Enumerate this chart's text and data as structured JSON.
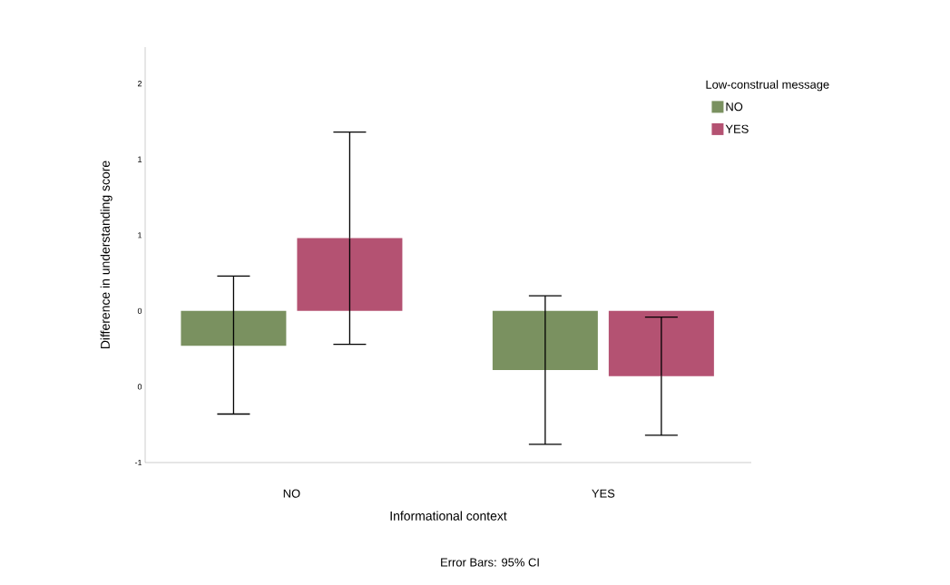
{
  "chart_data": {
    "type": "bar",
    "xlabel": "Informational context",
    "ylabel": "Difference in understanding score",
    "legend_title": "Low-construal message",
    "categories": [
      "NO",
      "YES"
    ],
    "series": [
      {
        "name": "NO",
        "color": "#7a9160",
        "values": [
          -0.23,
          -0.39
        ],
        "errors": [
          [
            -0.68,
            0.23
          ],
          [
            -0.88,
            0.1
          ]
        ]
      },
      {
        "name": "YES",
        "color": "#b45272",
        "values": [
          0.48,
          -0.43
        ],
        "errors": [
          [
            -0.22,
            1.18
          ],
          [
            -0.82,
            -0.04
          ]
        ]
      }
    ],
    "ylim": [
      -1.0,
      1.74
    ],
    "yticks": [
      {
        "value": 1.5,
        "label": "2"
      },
      {
        "value": 1.0,
        "label": "1"
      },
      {
        "value": 0.5,
        "label": "1"
      },
      {
        "value": 0.0,
        "label": "0"
      },
      {
        "value": -0.5,
        "label": "0"
      },
      {
        "value": -1.0,
        "label": "-1"
      }
    ],
    "legend": "top right",
    "grid": false,
    "annotations": [
      "Error Bars: 95% CI"
    ]
  }
}
